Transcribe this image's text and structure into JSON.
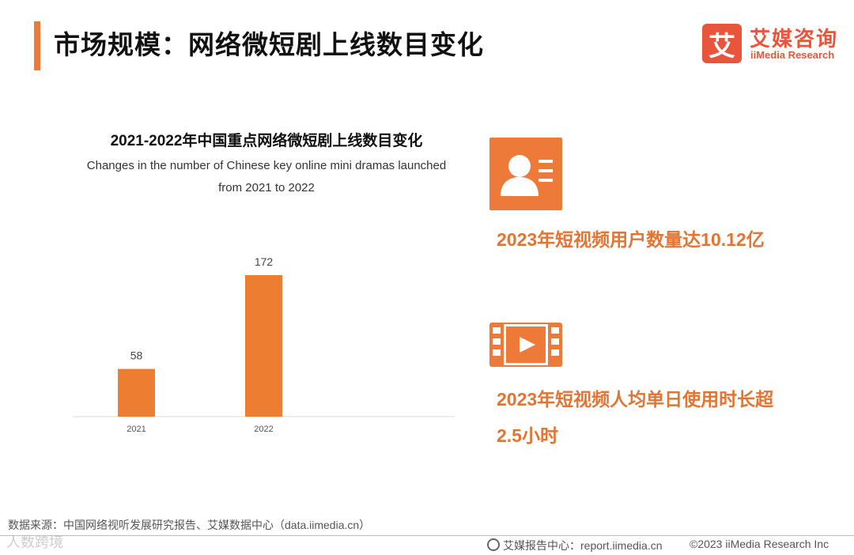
{
  "header": {
    "title": "市场规模：网络微短剧上线数目变化",
    "logo_mark": "艾",
    "logo_cn": "艾媒咨询",
    "logo_en": "iiMedia Research"
  },
  "chart_data": {
    "type": "bar",
    "title": "2021-2022年中国重点网络微短剧上线数目变化",
    "subtitle": "Changes in the number of Chinese key online mini dramas launched from 2021 to 2022",
    "subtitle_lines": [
      "Changes in the number of Chinese key online mini dramas launched",
      "from 2021 to 2022"
    ],
    "categories": [
      "2021",
      "2022"
    ],
    "values": [
      58,
      172
    ],
    "data_labels": [
      "58",
      "172"
    ],
    "ylim": [
      0,
      172
    ],
    "grid": false,
    "legend": "none",
    "bar_color": "#ED7D31"
  },
  "stats": [
    {
      "icon": "user-card-icon",
      "text": "2023年短视频用户数量达10.12亿"
    },
    {
      "icon": "video-play-icon",
      "text_lines": [
        "2023年短视频人均单日使用时长超",
        "2.5小时"
      ]
    }
  ],
  "footer": {
    "source": "数据来源：中国网络视听发展研究报告、艾媒数据中心（data.iimedia.cn）",
    "watermark": "人数跨境",
    "report_center": "艾媒报告中心：report.iimedia.cn",
    "copyright": "©2023  iiMedia Research Inc"
  },
  "colors": {
    "accent": "#EE7A3A",
    "stat_text": "#E37432",
    "brand": "#E8553A"
  }
}
